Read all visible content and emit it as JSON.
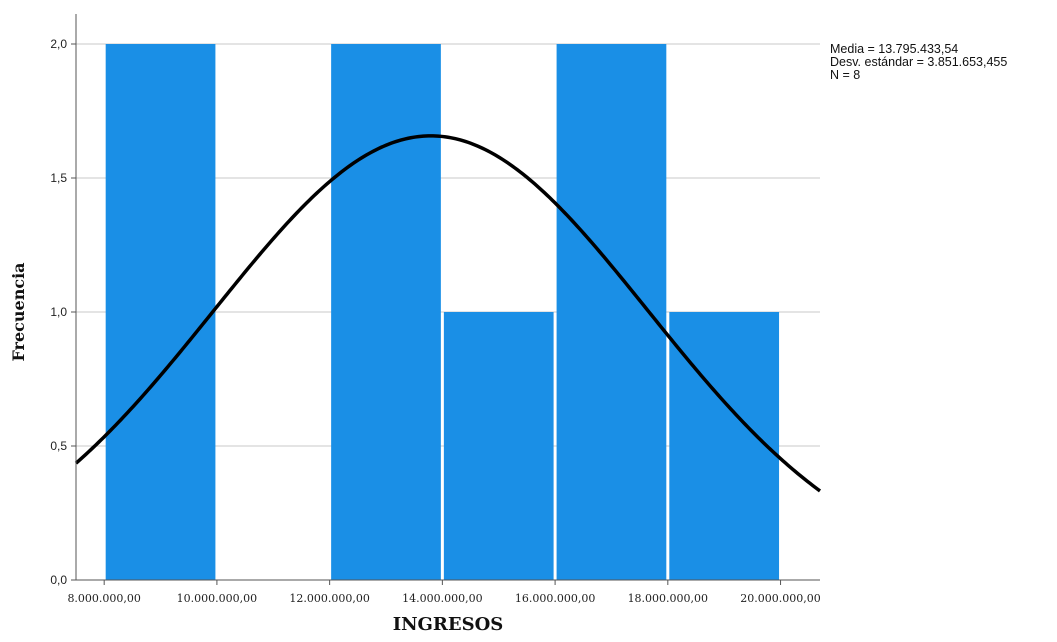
{
  "chart_data": {
    "type": "bar",
    "subtype": "histogram-with-normal-curve",
    "title": "",
    "xlabel": "INGRESOS",
    "ylabel": "Frecuencia",
    "bins": [
      {
        "x0": 8000000,
        "x1": 10000000,
        "value": 2
      },
      {
        "x0": 10000000,
        "x1": 12000000,
        "value": 0
      },
      {
        "x0": 12000000,
        "x1": 14000000,
        "value": 2
      },
      {
        "x0": 14000000,
        "x1": 16000000,
        "value": 1
      },
      {
        "x0": 16000000,
        "x1": 18000000,
        "value": 2
      },
      {
        "x0": 18000000,
        "x1": 20000000,
        "value": 1
      }
    ],
    "xlim": [
      7500000,
      20700000
    ],
    "ylim": [
      0,
      2.0
    ],
    "x_ticks": [
      {
        "value": 8000000,
        "label": "8.000.000,00"
      },
      {
        "value": 10000000,
        "label": "10.000.000,00"
      },
      {
        "value": 12000000,
        "label": "12.000.000,00"
      },
      {
        "value": 14000000,
        "label": "14.000.000,00"
      },
      {
        "value": 16000000,
        "label": "16.000.000,00"
      },
      {
        "value": 18000000,
        "label": "18.000.000,00"
      },
      {
        "value": 20000000,
        "label": "20.000.000,00"
      }
    ],
    "y_ticks": [
      {
        "value": 0.0,
        "label": "0,0"
      },
      {
        "value": 0.5,
        "label": "0,5"
      },
      {
        "value": 1.0,
        "label": "1,0"
      },
      {
        "value": 1.5,
        "label": "1,5"
      },
      {
        "value": 2.0,
        "label": "2,0"
      }
    ],
    "grid": {
      "horizontal": true,
      "vertical": false
    },
    "normal_curve": {
      "mean": 13795433.54,
      "std": 3851653.455,
      "n": 8,
      "bin_width": 2000000
    },
    "stats_lines": [
      "Media = 13.795.433,54",
      "Desv. estándar = 3.851.653,455",
      "N = 8"
    ],
    "legend_position": "top-right",
    "colors": {
      "bar": "#1a8fe6",
      "curve": "#000000",
      "grid": "#c8c8c8",
      "axis": "#555555"
    }
  }
}
